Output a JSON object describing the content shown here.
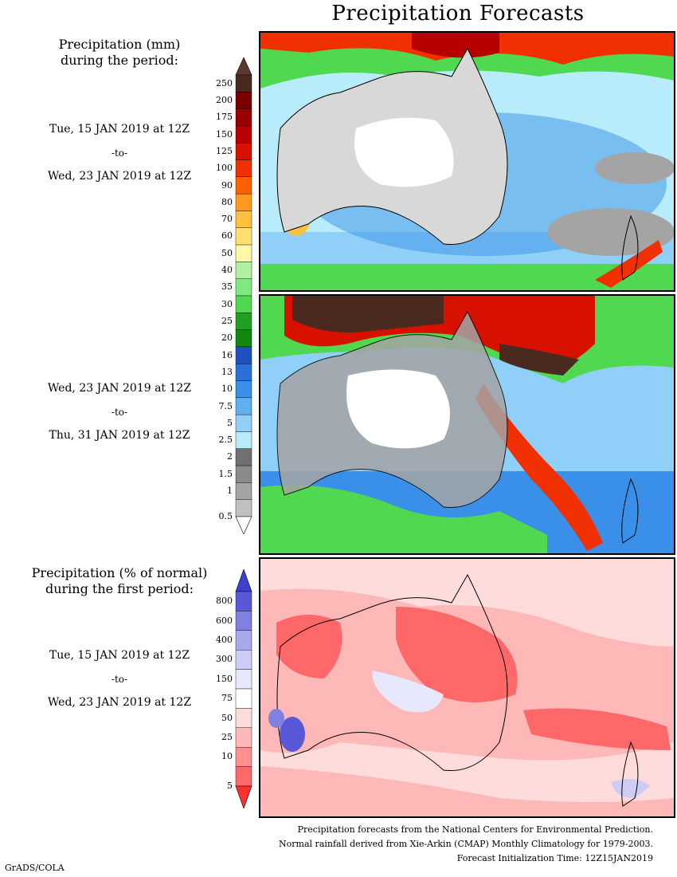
{
  "page": {
    "title": "Precipitation Forecasts"
  },
  "period1": {
    "header_line1": "Precipitation (mm)",
    "header_line2": "during the period:",
    "start": "Tue, 15 JAN 2019 at 12Z",
    "to": "-to-",
    "end": "Wed, 23 JAN 2019 at 12Z"
  },
  "period2": {
    "start": "Wed, 23 JAN 2019 at 12Z",
    "to": "-to-",
    "end": "Thu, 31 JAN 2019 at 12Z"
  },
  "percent": {
    "header_line1": "Precipitation (% of normal)",
    "header_line2": "during the first period:",
    "start": "Tue, 15 JAN 2019 at 12Z",
    "to": "-to-",
    "end": "Wed, 23 JAN 2019 at 12Z"
  },
  "legend_mm": {
    "labels": [
      "250",
      "200",
      "175",
      "150",
      "125",
      "100",
      "90",
      "80",
      "70",
      "60",
      "50",
      "40",
      "35",
      "30",
      "25",
      "20",
      "16",
      "13",
      "10",
      "7.5",
      "5",
      "2.5",
      "2",
      "1.5",
      "1",
      "0.5"
    ],
    "colors": [
      "#4a2a1e",
      "#7a0000",
      "#9a0000",
      "#b80000",
      "#d81000",
      "#f03000",
      "#ff6000",
      "#ff9a20",
      "#ffc040",
      "#ffe070",
      "#fff8a8",
      "#b0f0a0",
      "#80e880",
      "#50d850",
      "#20a020",
      "#108810",
      "#1e50c0",
      "#2a70d8",
      "#3a90e8",
      "#60b0f0",
      "#90d0f8",
      "#b8ecfa",
      "#707070",
      "#8a8a8a",
      "#a4a4a4",
      "#c0c0c0"
    ],
    "top_color": "#5a3a30",
    "bottom_color": "#ffffff"
  },
  "legend_pct": {
    "labels": [
      "800",
      "600",
      "400",
      "300",
      "150",
      "75",
      "50",
      "25",
      "10",
      "5"
    ],
    "colors": [
      "#5858d8",
      "#8080e0",
      "#a8a8ec",
      "#ccccf4",
      "#e8e8fc",
      "#ffffff",
      "#ffdcdc",
      "#ffb8b8",
      "#ff9090",
      "#ff6868"
    ],
    "top_color": "#4040d0",
    "bottom_color": "#ff3030"
  },
  "footer": {
    "line1": "Precipitation forecasts from the National Centers for Environmental Prediction.",
    "line2": "Normal rainfall derived from Xie-Arkin (CMAP) Monthly Climatology for 1979-2003.",
    "line3": "Forecast Initialization Time: 12Z15JAN2019"
  },
  "credit": "GrADS/COLA"
}
